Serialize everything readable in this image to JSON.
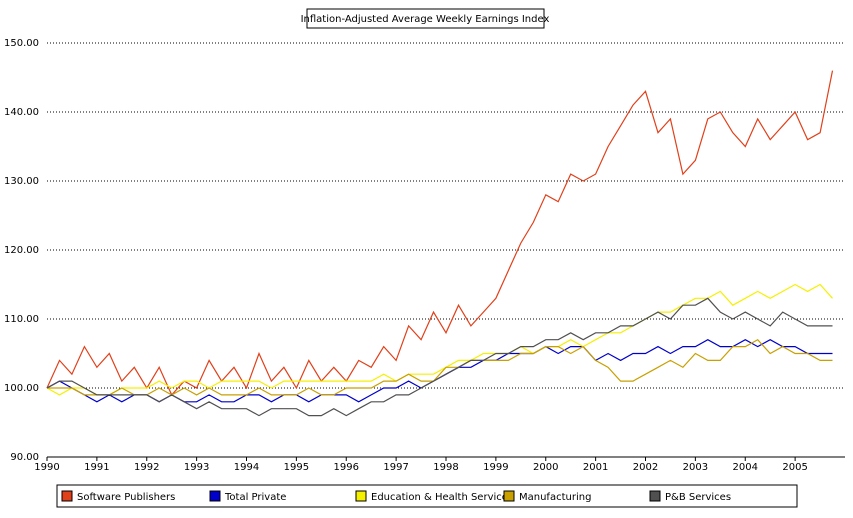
{
  "chart_data": {
    "type": "line",
    "title": "Inflation-Adjusted Average Weekly Earnings Index",
    "x": [
      1990,
      1990.25,
      1990.5,
      1990.75,
      1991,
      1991.25,
      1991.5,
      1991.75,
      1992,
      1992.25,
      1992.5,
      1992.75,
      1993,
      1993.25,
      1993.5,
      1993.75,
      1994,
      1994.25,
      1994.5,
      1994.75,
      1995,
      1995.25,
      1995.5,
      1995.75,
      1996,
      1996.25,
      1996.5,
      1996.75,
      1997,
      1997.25,
      1997.5,
      1997.75,
      1998,
      1998.25,
      1998.5,
      1998.75,
      1999,
      1999.25,
      1999.5,
      1999.75,
      2000,
      2000.25,
      2000.5,
      2000.75,
      2001,
      2001.25,
      2001.5,
      2001.75,
      2002,
      2002.25,
      2002.5,
      2002.75,
      2003,
      2003.25,
      2003.5,
      2003.75,
      2004,
      2004.25,
      2004.5,
      2004.75,
      2005,
      2005.25,
      2005.5,
      2005.75
    ],
    "series": [
      {
        "name": "Software Publishers",
        "color": "#e0401a",
        "values": [
          100,
          104,
          102,
          106,
          103,
          105,
          101,
          103,
          100,
          103,
          99,
          101,
          100,
          104,
          101,
          103,
          100,
          105,
          101,
          103,
          100,
          104,
          101,
          103,
          101,
          104,
          103,
          106,
          104,
          109,
          107,
          111,
          108,
          112,
          109,
          111,
          113,
          117,
          121,
          124,
          128,
          127,
          131,
          130,
          131,
          135,
          138,
          141,
          143,
          137,
          139,
          131,
          133,
          139,
          140,
          137,
          135,
          139,
          136,
          138,
          140,
          136,
          137,
          146
        ]
      },
      {
        "name": "Total Private",
        "color": "#0000cc",
        "values": [
          100,
          101,
          100,
          99,
          98,
          99,
          98,
          99,
          99,
          98,
          99,
          98,
          98,
          99,
          98,
          98,
          99,
          99,
          98,
          99,
          99,
          98,
          99,
          99,
          99,
          98,
          99,
          100,
          100,
          101,
          100,
          101,
          102,
          103,
          103,
          104,
          104,
          105,
          105,
          105,
          106,
          105,
          106,
          106,
          104,
          105,
          104,
          105,
          105,
          106,
          105,
          106,
          106,
          107,
          106,
          106,
          107,
          106,
          107,
          106,
          106,
          105,
          105,
          105
        ]
      },
      {
        "name": "Education & Health Services",
        "color": "#f5f000",
        "values": [
          100,
          99,
          100,
          100,
          99,
          99,
          100,
          100,
          100,
          101,
          100,
          101,
          101,
          100,
          101,
          101,
          101,
          101,
          100,
          101,
          101,
          101,
          101,
          101,
          101,
          101,
          101,
          102,
          101,
          102,
          102,
          102,
          103,
          104,
          104,
          105,
          105,
          105,
          106,
          105,
          106,
          106,
          107,
          106,
          107,
          108,
          108,
          109,
          110,
          111,
          111,
          112,
          113,
          113,
          114,
          112,
          113,
          114,
          113,
          114,
          115,
          114,
          115,
          113
        ]
      },
      {
        "name": "Manufacturing",
        "color": "#c8a000",
        "values": [
          100,
          100,
          100,
          99,
          99,
          99,
          100,
          99,
          99,
          100,
          99,
          100,
          99,
          100,
          99,
          99,
          99,
          100,
          99,
          99,
          99,
          100,
          99,
          99,
          100,
          100,
          100,
          101,
          101,
          102,
          101,
          101,
          103,
          103,
          104,
          104,
          104,
          104,
          105,
          105,
          106,
          106,
          105,
          106,
          104,
          103,
          101,
          101,
          102,
          103,
          104,
          103,
          105,
          104,
          104,
          106,
          106,
          107,
          105,
          106,
          105,
          105,
          104,
          104
        ]
      },
      {
        "name": "P&B Services",
        "color": "#505050",
        "values": [
          100,
          101,
          101,
          100,
          99,
          99,
          99,
          99,
          99,
          98,
          99,
          98,
          97,
          98,
          97,
          97,
          97,
          96,
          97,
          97,
          97,
          96,
          96,
          97,
          96,
          97,
          98,
          98,
          99,
          99,
          100,
          101,
          102,
          103,
          104,
          104,
          105,
          105,
          106,
          106,
          107,
          107,
          108,
          107,
          108,
          108,
          109,
          109,
          110,
          111,
          110,
          112,
          112,
          113,
          111,
          110,
          111,
          110,
          109,
          111,
          110,
          109,
          109,
          109
        ]
      }
    ],
    "xlim": [
      1990,
      2006
    ],
    "ylim": [
      90,
      150
    ],
    "xticks": [
      1990,
      1991,
      1992,
      1993,
      1994,
      1995,
      1996,
      1997,
      1998,
      1999,
      2000,
      2001,
      2002,
      2003,
      2004,
      2005
    ],
    "yticks": [
      {
        "value": 90,
        "label": "90.00"
      },
      {
        "value": 100,
        "label": "100.00"
      },
      {
        "value": 110,
        "label": "110.00"
      },
      {
        "value": 120,
        "label": "120.00"
      },
      {
        "value": 130,
        "label": "130.00"
      },
      {
        "value": 140,
        "label": "140.00"
      },
      {
        "value": 150,
        "label": "150.00"
      }
    ],
    "grid": true
  }
}
